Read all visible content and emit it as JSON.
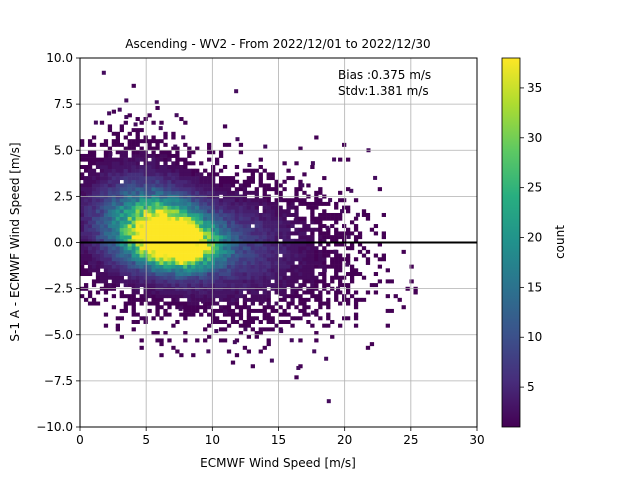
{
  "chart_data": {
    "type": "heatmap",
    "title": "Ascending - WV2 - From 2022/12/01 to 2022/12/30",
    "xlabel": "ECMWF Wind Speed [m/s]",
    "ylabel": "S-1 A - ECMWF Wind Speed [m/s]",
    "xlim": [
      0,
      30
    ],
    "ylim": [
      -10,
      10
    ],
    "xticks": [
      "0",
      "5",
      "10",
      "15",
      "20",
      "25",
      "30"
    ],
    "yticks": [
      "−10.0",
      "−7.5",
      "−5.0",
      "−2.5",
      "0.0",
      "2.5",
      "5.0",
      "7.5",
      "10.0"
    ],
    "grid": true,
    "reference_line_y": 0,
    "annotations": {
      "bias": "Bias :0.375 m/s",
      "stdv": "Stdv:1.381 m/s"
    },
    "colorbar": {
      "label": "count",
      "min": 1,
      "max": 38,
      "ticks": [
        "5",
        "10",
        "15",
        "20",
        "25",
        "30",
        "35"
      ],
      "colormap": "viridis"
    },
    "density_blobs": [
      {
        "cx": 6.5,
        "cy": 0.5,
        "sx": 1.6,
        "sy": 0.9,
        "peak": 34
      },
      {
        "cx": 8.0,
        "cy": -0.2,
        "sx": 1.8,
        "sy": 0.8,
        "peak": 30
      },
      {
        "cx": 5.0,
        "cy": 1.0,
        "sx": 2.4,
        "sy": 1.3,
        "peak": 16
      },
      {
        "cx": 9.0,
        "cy": 0.0,
        "sx": 4.0,
        "sy": 1.6,
        "peak": 8
      },
      {
        "cx": 4.0,
        "cy": 2.0,
        "sx": 2.6,
        "sy": 1.8,
        "peak": 5
      },
      {
        "cx": 13.0,
        "cy": -1.0,
        "sx": 4.5,
        "sy": 2.0,
        "peak": 2.2
      }
    ],
    "outliers": [
      [
        1.8,
        9.2
      ],
      [
        11.8,
        8.2
      ],
      [
        3.5,
        7.7
      ],
      [
        5.8,
        7.6
      ],
      [
        3.0,
        7.2
      ],
      [
        2.2,
        7.0
      ],
      [
        1.2,
        6.5
      ],
      [
        3.5,
        6.8
      ],
      [
        4.2,
        6.4
      ],
      [
        6.1,
        6.2
      ],
      [
        7.3,
        6.9
      ],
      [
        7.8,
        5.7
      ],
      [
        7.2,
        5.2
      ],
      [
        11.9,
        5.6
      ],
      [
        14.0,
        5.2
      ],
      [
        17.6,
        4.3
      ],
      [
        19.2,
        4.5
      ],
      [
        21.8,
        5.0
      ],
      [
        22.3,
        3.5
      ],
      [
        20.5,
        2.8
      ],
      [
        21.0,
        1.5
      ],
      [
        19.8,
        1.7
      ],
      [
        18.7,
        0.8
      ],
      [
        20.2,
        -1.2
      ],
      [
        18.5,
        -1.5
      ],
      [
        19.5,
        -2.5
      ],
      [
        17.3,
        -1.8
      ],
      [
        15.2,
        -4.8
      ],
      [
        16.0,
        -5.3
      ],
      [
        14.5,
        -6.4
      ],
      [
        16.5,
        -6.8
      ],
      [
        17.7,
        -5.9
      ],
      [
        18.6,
        -6.3
      ],
      [
        18.8,
        -8.6
      ],
      [
        9.7,
        -5.9
      ],
      [
        11.7,
        -5.4
      ],
      [
        12.5,
        -4.7
      ],
      [
        10.3,
        -4.8
      ],
      [
        7.6,
        -3.6
      ],
      [
        15.2,
        -2.8
      ],
      [
        13.8,
        -3.2
      ],
      [
        11.0,
        -3.8
      ],
      [
        2.3,
        4.8
      ],
      [
        0.4,
        3.3
      ],
      [
        0.3,
        2.6
      ],
      [
        1.4,
        -1.1
      ],
      [
        9.3,
        -3.2
      ],
      [
        17.6,
        -3.8
      ],
      [
        8.5,
        -2.9
      ],
      [
        12.8,
        4.2
      ],
      [
        16.8,
        3.1
      ],
      [
        18.9,
        2.3
      ],
      [
        20.3,
        0.3
      ],
      [
        19.3,
        -0.5
      ],
      [
        16.3,
        1.2
      ]
    ]
  }
}
